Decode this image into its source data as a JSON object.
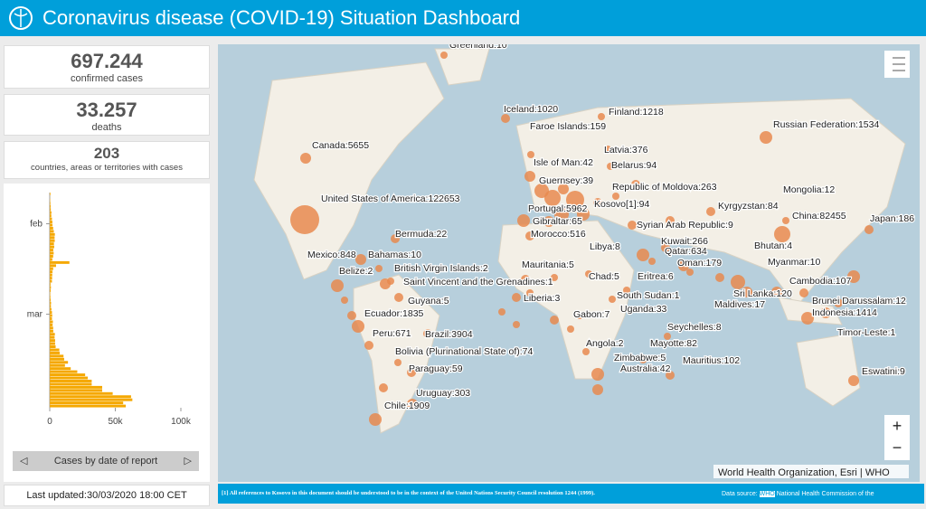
{
  "header": {
    "title": "Coronavirus disease (COVID-19) Situation Dashboard"
  },
  "stats": [
    {
      "value": "697.244",
      "label": "confirmed cases"
    },
    {
      "value": "33.257",
      "label": "deaths"
    },
    {
      "value": "203",
      "label": "countries, areas or territories with cases"
    }
  ],
  "chart_data": {
    "type": "bar",
    "orientation": "horizontal",
    "color": "#f5a800",
    "categories": [
      null,
      null,
      null,
      null,
      null,
      null,
      null,
      null,
      null,
      null,
      null,
      null,
      null,
      null,
      null,
      null,
      null,
      null,
      null,
      null,
      null,
      null,
      null,
      null,
      null,
      null,
      null,
      null,
      null,
      null,
      null,
      null,
      null,
      null,
      null,
      null,
      null,
      null,
      null,
      null,
      null,
      null,
      null,
      null,
      null,
      null,
      null,
      null,
      null,
      null,
      null,
      null,
      null,
      null,
      null,
      null,
      null,
      null,
      null,
      null,
      null,
      null,
      null,
      null,
      null,
      null,
      null,
      null,
      null
    ],
    "values": [
      500,
      100,
      300,
      500,
      700,
      800,
      1300,
      1200,
      1700,
      2000,
      2100,
      2600,
      3100,
      3900,
      3700,
      3800,
      3200,
      3400,
      2700,
      3000,
      2600,
      2000,
      15000,
      4800,
      2600,
      2100,
      1900,
      1800,
      1700,
      600,
      900,
      700,
      400,
      500,
      700,
      1000,
      900,
      1300,
      1700,
      1900,
      1700,
      2400,
      2200,
      2600,
      2700,
      3900,
      3700,
      4100,
      4100,
      4500,
      7300,
      7600,
      10500,
      11000,
      13900,
      11600,
      16000,
      21000,
      27000,
      29000,
      32000,
      32000,
      40000,
      40000,
      48000,
      62000,
      63000,
      56000,
      58000
    ],
    "category_ticks": [
      {
        "value": 10,
        "label": "feb"
      },
      {
        "value": 39,
        "label": "mar"
      }
    ],
    "xlim": [
      0,
      100000
    ],
    "xticks": [
      0,
      {
        "value": 50000,
        "label": "50k"
      },
      {
        "value": 100000,
        "label": "100k"
      }
    ],
    "selector": "Cases by date of report"
  },
  "last_updated": "Last updated:30/03/2020 18:00 CET",
  "map": {
    "labels": [
      "Greenland:10",
      "Iceland:1020",
      "Finland:1218",
      "Faroe Islands:159",
      "Russian Federation:1534",
      "Canada:5655",
      "Latvia:376",
      "Isle of Man:42",
      "Belarus:94",
      "Guernsey:39",
      "Republic of Moldova:263",
      "Mongolia:12",
      "United States of America:122653",
      "Portugal:5962",
      "Kosovo[1]:94",
      "Kyrgyzstan:84",
      "Gibraltar:65",
      "China:82455",
      "Syrian Arab Republic:9",
      "Japan:186",
      "Morocco:516",
      "Bermuda:22",
      "Kuwait:266",
      "Bhutan:4",
      "Libya:8",
      "Qatar:634",
      "Mexico:848",
      "Bahamas:10",
      "Oman:179",
      "Myanmar:10",
      "Mauritania:5",
      "British Virgin Islands:2",
      "Belize:2",
      "Chad:5",
      "Eritrea:6",
      "Saint Vincent and the Grenadines:1",
      "Cambodia:107",
      "South Sudan:1",
      "Sri Lanka:120",
      "Liberia:3",
      "Guyana:5",
      "Brunei Darussalam:12",
      "Maldives:17",
      "Uganda:33",
      "Ecuador:1835",
      "Indonesia:1414",
      "Gabon:7",
      "Seychelles:8",
      "Peru:671",
      "Brazil:3904",
      "Timor-Leste:1",
      "Angola:2",
      "Mayotte:82",
      "Bolivia (Plurinational State of):74",
      "Zimbabwe:5",
      "Mauritius:102",
      "Paraguay:59",
      "Australia:42",
      "Eswatini:9",
      "Uruguay:303",
      "Chile:1909"
    ],
    "attribution": "World Health Organization, Esri | WHO",
    "zoom_in": "+",
    "zoom_out": "−"
  },
  "footer": {
    "note": "[1] All references to Kosovo in this document should be understood to be in the context of the United Nations Security Council resolution 1244 (1999).",
    "source_label": "Data source:",
    "source_who": "WHO",
    "source_rest": "National Health Commission of the"
  }
}
